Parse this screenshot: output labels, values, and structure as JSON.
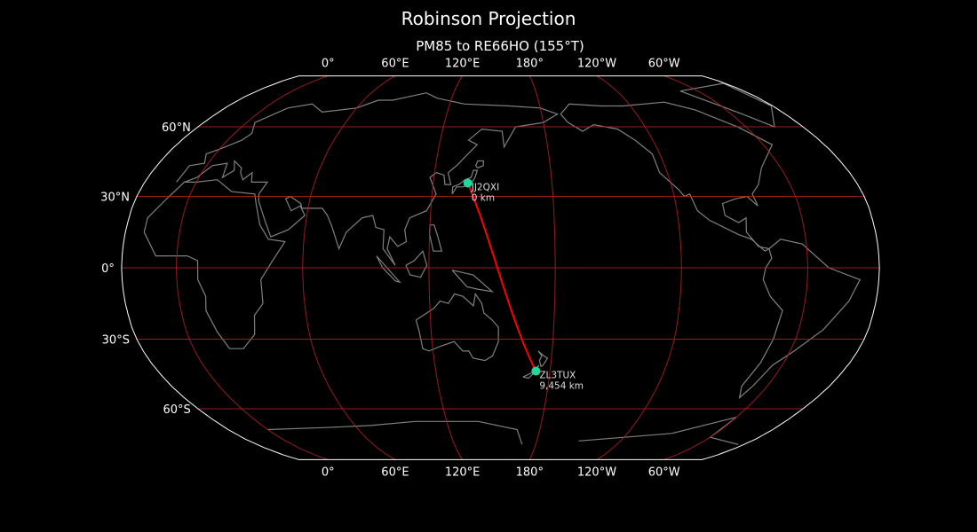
{
  "title": "Robinson Projection",
  "subtitle": "PM85 to RE66HO (155°T)",
  "map": {
    "projection": "Robinson",
    "central_longitude": 154,
    "colors": {
      "background": "#000000",
      "coastline": "#808080",
      "graticule": "#b22222",
      "path": "#ff0000",
      "marker": "#1fd8a0",
      "boundary": "#ffffff"
    },
    "meridian_labels": [
      "0°",
      "60°E",
      "120°E",
      "180°",
      "120°W",
      "60°W"
    ],
    "meridian_values": [
      0,
      60,
      120,
      180,
      240,
      300
    ],
    "parallel_labels": [
      "60°N",
      "30°N",
      "0°",
      "30°S",
      "60°S"
    ],
    "parallel_values": [
      60,
      30,
      0,
      -30,
      -60
    ],
    "points": [
      {
        "call": "JJ2QXI",
        "distance": "0 km",
        "lat": 35.6,
        "lon": 137.5
      },
      {
        "call": "ZL3TUX",
        "distance": "9,454 km",
        "lat": -43.5,
        "lon": 172.6
      }
    ]
  }
}
